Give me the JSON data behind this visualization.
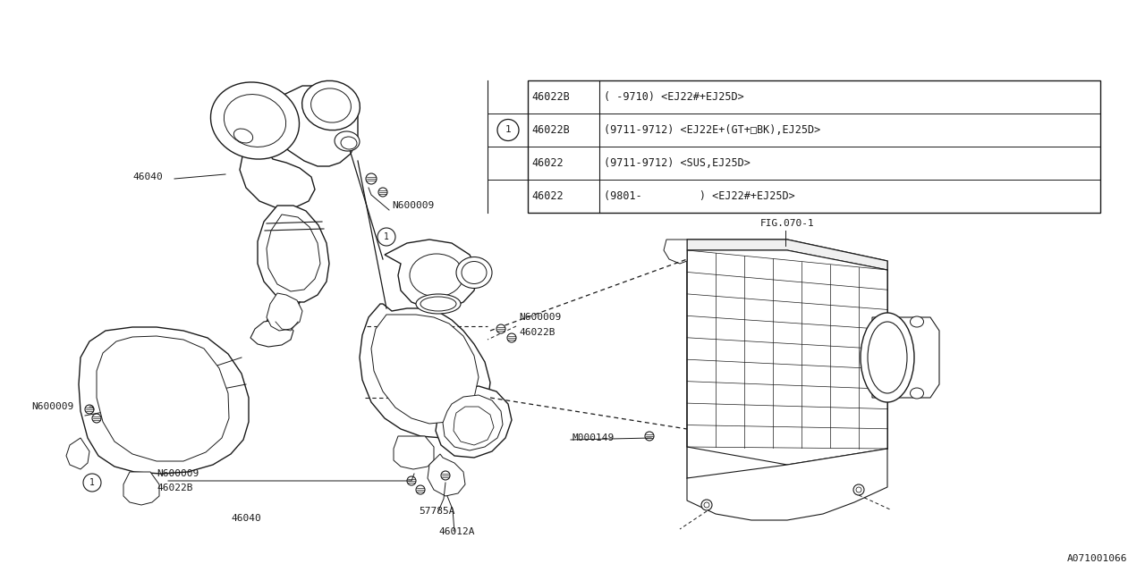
{
  "bg_color": "#ffffff",
  "line_color": "#1a1a1a",
  "doc_id": "A071001066",
  "fig_ref": "FIG.070-1",
  "table": {
    "rows": [
      [
        "46022B",
        "( -9710) <EJ22#+EJ25D>"
      ],
      [
        "46022B",
        "(9711-9712) <EJ22E+(GT+□BK),EJ25D>"
      ],
      [
        "46022",
        "(9711-9712) <SUS,EJ25D>"
      ],
      [
        "46022",
        "(9801-         ) <EJ22#+EJ25D>"
      ]
    ]
  }
}
